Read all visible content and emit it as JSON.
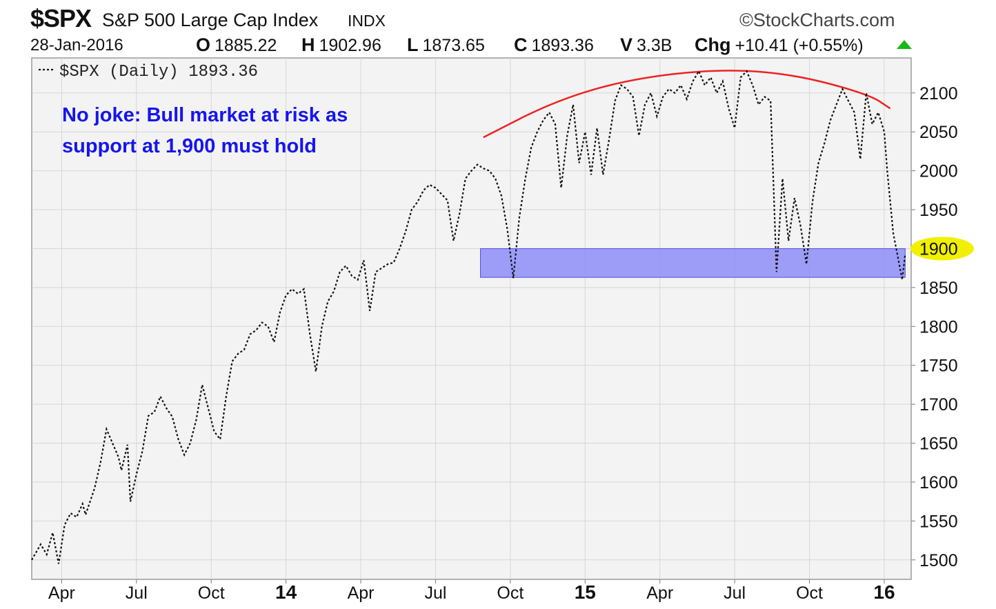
{
  "header": {
    "symbol": "$SPX",
    "name": "S&P 500 Large Cap Index",
    "exchange": "INDX",
    "credit": "©StockCharts.com",
    "date": "28-Jan-2016",
    "open_label": "O",
    "open": "1885.22",
    "high_label": "H",
    "high": "1902.96",
    "low_label": "L",
    "low": "1873.65",
    "close_label": "C",
    "close": "1893.36",
    "volume_label": "V",
    "volume": "3.3B",
    "change_label": "Chg",
    "change": "+10.41 (+0.55%)",
    "change_up_color": "#16b816"
  },
  "chart_data": {
    "type": "line",
    "legend": "$SPX (Daily) 1893.36",
    "annotation": [
      "No joke: Bull market at risk as",
      "support at 1,900 must hold"
    ],
    "annotation_color": "#1515ee",
    "grid": true,
    "ylim": [
      1475,
      2145
    ],
    "xlim": [
      2013.15,
      2016.09
    ],
    "y_ticks": [
      "1500",
      "1550",
      "1600",
      "1650",
      "1700",
      "1750",
      "1800",
      "1850",
      "1900",
      "1950",
      "2000",
      "2050",
      "2100"
    ],
    "y_tick_values": [
      1500,
      1550,
      1600,
      1650,
      1700,
      1750,
      1800,
      1850,
      1900,
      1950,
      2000,
      2050,
      2100
    ],
    "highlighted_tick": "1900",
    "highlight_color": "#f0f000",
    "x_ticks": [
      {
        "label": "Apr",
        "t": 2013.25,
        "major": false
      },
      {
        "label": "Jul",
        "t": 2013.5,
        "major": false
      },
      {
        "label": "Oct",
        "t": 2013.75,
        "major": false
      },
      {
        "label": "14",
        "t": 2014.0,
        "major": true
      },
      {
        "label": "Apr",
        "t": 2014.25,
        "major": false
      },
      {
        "label": "Jul",
        "t": 2014.5,
        "major": false
      },
      {
        "label": "Oct",
        "t": 2014.75,
        "major": false
      },
      {
        "label": "15",
        "t": 2015.0,
        "major": true
      },
      {
        "label": "Apr",
        "t": 2015.25,
        "major": false
      },
      {
        "label": "Jul",
        "t": 2015.5,
        "major": false
      },
      {
        "label": "Oct",
        "t": 2015.75,
        "major": false
      },
      {
        "label": "16",
        "t": 2016.0,
        "major": true
      }
    ],
    "support_zone": {
      "y_from": 1863,
      "y_to": 1900,
      "x_from": 2014.65,
      "x_to": 2016.07,
      "color": "#8080f8"
    },
    "topping_arc": {
      "color": "#ee2222",
      "points": [
        [
          2014.66,
          2043
        ],
        [
          2014.9,
          2090
        ],
        [
          2015.15,
          2118
        ],
        [
          2015.45,
          2131
        ],
        [
          2015.7,
          2124
        ],
        [
          2015.95,
          2098
        ],
        [
          2016.02,
          2080
        ]
      ]
    },
    "series": [
      {
        "values": [
          [
            2013.15,
            1500
          ],
          [
            2013.18,
            1520
          ],
          [
            2013.2,
            1507
          ],
          [
            2013.22,
            1535
          ],
          [
            2013.24,
            1495
          ],
          [
            2013.26,
            1545
          ],
          [
            2013.28,
            1560
          ],
          [
            2013.3,
            1555
          ],
          [
            2013.32,
            1572
          ],
          [
            2013.33,
            1558
          ],
          [
            2013.36,
            1592
          ],
          [
            2013.38,
            1625
          ],
          [
            2013.4,
            1668
          ],
          [
            2013.42,
            1650
          ],
          [
            2013.44,
            1632
          ],
          [
            2013.45,
            1615
          ],
          [
            2013.47,
            1648
          ],
          [
            2013.48,
            1575
          ],
          [
            2013.5,
            1610
          ],
          [
            2013.52,
            1640
          ],
          [
            2013.54,
            1685
          ],
          [
            2013.56,
            1690
          ],
          [
            2013.58,
            1710
          ],
          [
            2013.6,
            1695
          ],
          [
            2013.62,
            1684
          ],
          [
            2013.64,
            1655
          ],
          [
            2013.66,
            1635
          ],
          [
            2013.68,
            1650
          ],
          [
            2013.7,
            1680
          ],
          [
            2013.72,
            1725
          ],
          [
            2013.74,
            1695
          ],
          [
            2013.76,
            1665
          ],
          [
            2013.78,
            1655
          ],
          [
            2013.8,
            1710
          ],
          [
            2013.82,
            1755
          ],
          [
            2013.84,
            1765
          ],
          [
            2013.86,
            1770
          ],
          [
            2013.88,
            1790
          ],
          [
            2013.9,
            1795
          ],
          [
            2013.92,
            1805
          ],
          [
            2013.94,
            1800
          ],
          [
            2013.96,
            1780
          ],
          [
            2013.98,
            1818
          ],
          [
            2014.0,
            1840
          ],
          [
            2014.02,
            1848
          ],
          [
            2014.04,
            1842
          ],
          [
            2014.06,
            1848
          ],
          [
            2014.08,
            1790
          ],
          [
            2014.1,
            1742
          ],
          [
            2014.12,
            1800
          ],
          [
            2014.14,
            1832
          ],
          [
            2014.16,
            1845
          ],
          [
            2014.18,
            1870
          ],
          [
            2014.2,
            1878
          ],
          [
            2014.22,
            1865
          ],
          [
            2014.24,
            1860
          ],
          [
            2014.26,
            1885
          ],
          [
            2014.28,
            1820
          ],
          [
            2014.3,
            1870
          ],
          [
            2014.32,
            1875
          ],
          [
            2014.34,
            1880
          ],
          [
            2014.36,
            1882
          ],
          [
            2014.38,
            1900
          ],
          [
            2014.4,
            1922
          ],
          [
            2014.42,
            1950
          ],
          [
            2014.44,
            1960
          ],
          [
            2014.46,
            1975
          ],
          [
            2014.48,
            1982
          ],
          [
            2014.5,
            1978
          ],
          [
            2014.52,
            1970
          ],
          [
            2014.54,
            1962
          ],
          [
            2014.56,
            1910
          ],
          [
            2014.58,
            1945
          ],
          [
            2014.6,
            1990
          ],
          [
            2014.62,
            2000
          ],
          [
            2014.64,
            2008
          ],
          [
            2014.66,
            2003
          ],
          [
            2014.68,
            2000
          ],
          [
            2014.7,
            1990
          ],
          [
            2014.72,
            1968
          ],
          [
            2014.74,
            1925
          ],
          [
            2014.76,
            1862
          ],
          [
            2014.78,
            1940
          ],
          [
            2014.8,
            1990
          ],
          [
            2014.82,
            2030
          ],
          [
            2014.84,
            2050
          ],
          [
            2014.86,
            2065
          ],
          [
            2014.88,
            2075
          ],
          [
            2014.9,
            2060
          ],
          [
            2014.92,
            1978
          ],
          [
            2014.94,
            2045
          ],
          [
            2014.96,
            2085
          ],
          [
            2014.98,
            2010
          ],
          [
            2015.0,
            2050
          ],
          [
            2015.02,
            1995
          ],
          [
            2015.04,
            2055
          ],
          [
            2015.06,
            1995
          ],
          [
            2015.08,
            2040
          ],
          [
            2015.1,
            2090
          ],
          [
            2015.12,
            2110
          ],
          [
            2015.14,
            2105
          ],
          [
            2015.16,
            2095
          ],
          [
            2015.18,
            2045
          ],
          [
            2015.2,
            2085
          ],
          [
            2015.22,
            2100
          ],
          [
            2015.24,
            2070
          ],
          [
            2015.26,
            2095
          ],
          [
            2015.28,
            2105
          ],
          [
            2015.3,
            2100
          ],
          [
            2015.32,
            2110
          ],
          [
            2015.34,
            2092
          ],
          [
            2015.36,
            2115
          ],
          [
            2015.38,
            2128
          ],
          [
            2015.4,
            2110
          ],
          [
            2015.42,
            2120
          ],
          [
            2015.44,
            2100
          ],
          [
            2015.46,
            2115
          ],
          [
            2015.48,
            2080
          ],
          [
            2015.5,
            2055
          ],
          [
            2015.52,
            2120
          ],
          [
            2015.54,
            2128
          ],
          [
            2015.56,
            2110
          ],
          [
            2015.58,
            2085
          ],
          [
            2015.6,
            2095
          ],
          [
            2015.62,
            2090
          ],
          [
            2015.64,
            1870
          ],
          [
            2015.66,
            1990
          ],
          [
            2015.68,
            1910
          ],
          [
            2015.7,
            1965
          ],
          [
            2015.72,
            1930
          ],
          [
            2015.74,
            1880
          ],
          [
            2015.76,
            1960
          ],
          [
            2015.78,
            2010
          ],
          [
            2015.8,
            2035
          ],
          [
            2015.82,
            2065
          ],
          [
            2015.84,
            2085
          ],
          [
            2015.86,
            2105
          ],
          [
            2015.88,
            2090
          ],
          [
            2015.9,
            2075
          ],
          [
            2015.92,
            2015
          ],
          [
            2015.94,
            2100
          ],
          [
            2015.96,
            2060
          ],
          [
            2015.98,
            2075
          ],
          [
            2016.0,
            2050
          ],
          [
            2016.01,
            2000
          ],
          [
            2016.03,
            1920
          ],
          [
            2016.05,
            1880
          ],
          [
            2016.06,
            1860
          ],
          [
            2016.07,
            1893
          ]
        ]
      }
    ]
  }
}
